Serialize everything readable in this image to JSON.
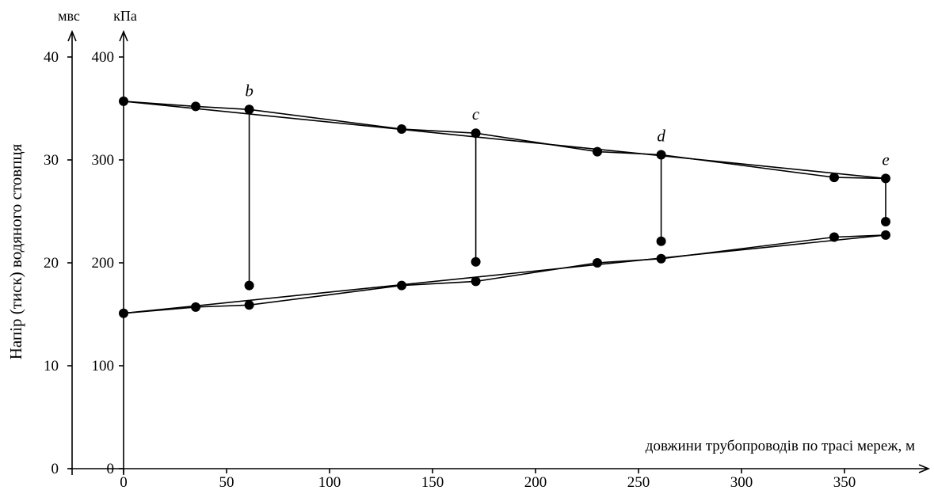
{
  "chart_data": {
    "type": "line",
    "xlabel": "довжини трубопроводів по трасі мереж, м",
    "ylabel": "Напір (тиск) водяного стовпця",
    "y_units_left": "мвс",
    "y_units_right": "кПа",
    "xlim": [
      0,
      390
    ],
    "ylim_kpa": [
      0,
      400
    ],
    "x_ticks": [
      0,
      50,
      100,
      150,
      200,
      250,
      300,
      350
    ],
    "x_tick_labels": [
      "0",
      "50",
      "100",
      "150",
      "200",
      "250",
      "300",
      "350"
    ],
    "y_ticks_kpa": [
      0,
      100,
      200,
      300,
      400
    ],
    "y_tick_labels_kpa": [
      "0",
      "100",
      "200",
      "300",
      "400"
    ],
    "y_ticks_mvs": [
      0,
      10,
      20,
      30,
      40
    ],
    "y_tick_labels_mvs": [
      "0",
      "10",
      "20",
      "30",
      "40"
    ],
    "series": [
      {
        "role": "upper-polyline",
        "points": [
          [
            0,
            357
          ],
          [
            35,
            352
          ],
          [
            61,
            349
          ],
          [
            135,
            330
          ],
          [
            171,
            326
          ],
          [
            230,
            308
          ],
          [
            261,
            305
          ],
          [
            345,
            283
          ],
          [
            370,
            282
          ]
        ]
      },
      {
        "role": "upper-trend",
        "points": [
          [
            0,
            357
          ],
          [
            370,
            282
          ]
        ]
      },
      {
        "role": "lower-polyline",
        "points": [
          [
            0,
            151
          ],
          [
            35,
            157
          ],
          [
            61,
            159
          ],
          [
            135,
            178
          ],
          [
            171,
            182
          ],
          [
            230,
            200
          ],
          [
            261,
            204
          ],
          [
            345,
            225
          ],
          [
            370,
            227
          ]
        ]
      },
      {
        "role": "lower-trend",
        "points": [
          [
            0,
            151
          ],
          [
            370,
            227
          ]
        ]
      }
    ],
    "branches": [
      {
        "label": "b",
        "x": 61,
        "top": 349,
        "bottom": 178
      },
      {
        "label": "c",
        "x": 171,
        "top": 326,
        "bottom": 201
      },
      {
        "label": "d",
        "x": 261,
        "top": 305,
        "bottom": 221
      },
      {
        "label": "e",
        "x": 370,
        "top": 282,
        "bottom": 240
      }
    ]
  }
}
